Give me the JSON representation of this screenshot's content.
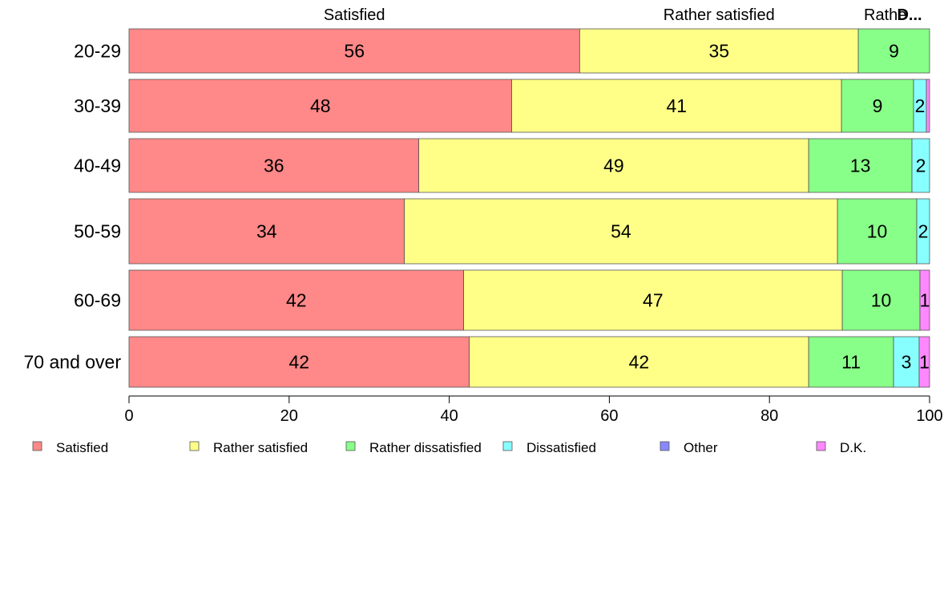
{
  "chart_data": {
    "type": "bar",
    "orientation": "horizontal",
    "stacked": true,
    "categories": [
      "20-29",
      "30-39",
      "40-49",
      "50-59",
      "60-69",
      "70 and over"
    ],
    "series": [
      {
        "name": "Satisfied",
        "color": "#ff8888",
        "values": [
          56.3,
          47.8,
          36.2,
          34.4,
          41.8,
          42.5
        ],
        "labels": [
          "56",
          "48",
          "36",
          "34",
          "42",
          "42"
        ]
      },
      {
        "name": "Rather satisfied",
        "color": "#ffff88",
        "values": [
          34.8,
          41.2,
          48.7,
          54.1,
          47.3,
          42.4
        ],
        "labels": [
          "35",
          "41",
          "49",
          "54",
          "47",
          "42"
        ]
      },
      {
        "name": "Rather dissatisfied",
        "color": "#88ff88",
        "values": [
          8.9,
          9.0,
          12.9,
          9.9,
          9.7,
          10.6
        ],
        "labels": [
          "9",
          "9",
          "13",
          "10",
          "10",
          "11"
        ]
      },
      {
        "name": "Dissatisfied",
        "color": "#88ffff",
        "values": [
          0,
          1.6,
          2.2,
          1.6,
          0,
          3.2
        ],
        "labels": [
          "",
          "2",
          "2",
          "2",
          "",
          "3"
        ]
      },
      {
        "name": "Other",
        "color": "#8888ff",
        "values": [
          0,
          0,
          0,
          0,
          0,
          0
        ],
        "labels": [
          "",
          "",
          "",
          "",
          "",
          ""
        ]
      },
      {
        "name": "D.K.",
        "color": "#ff88ff",
        "values": [
          0,
          0.4,
          0,
          0,
          1.2,
          1.3
        ],
        "labels": [
          "",
          "",
          "",
          "",
          "1",
          "1"
        ]
      }
    ],
    "top_labels": [
      "Satisfied",
      "Rather satisfied",
      "Rathe",
      "D..."
    ],
    "xlim": [
      0,
      100
    ],
    "xticks": [
      "0",
      "20",
      "40",
      "60",
      "80",
      "100"
    ],
    "grid": false,
    "legend_position": "bottom"
  }
}
